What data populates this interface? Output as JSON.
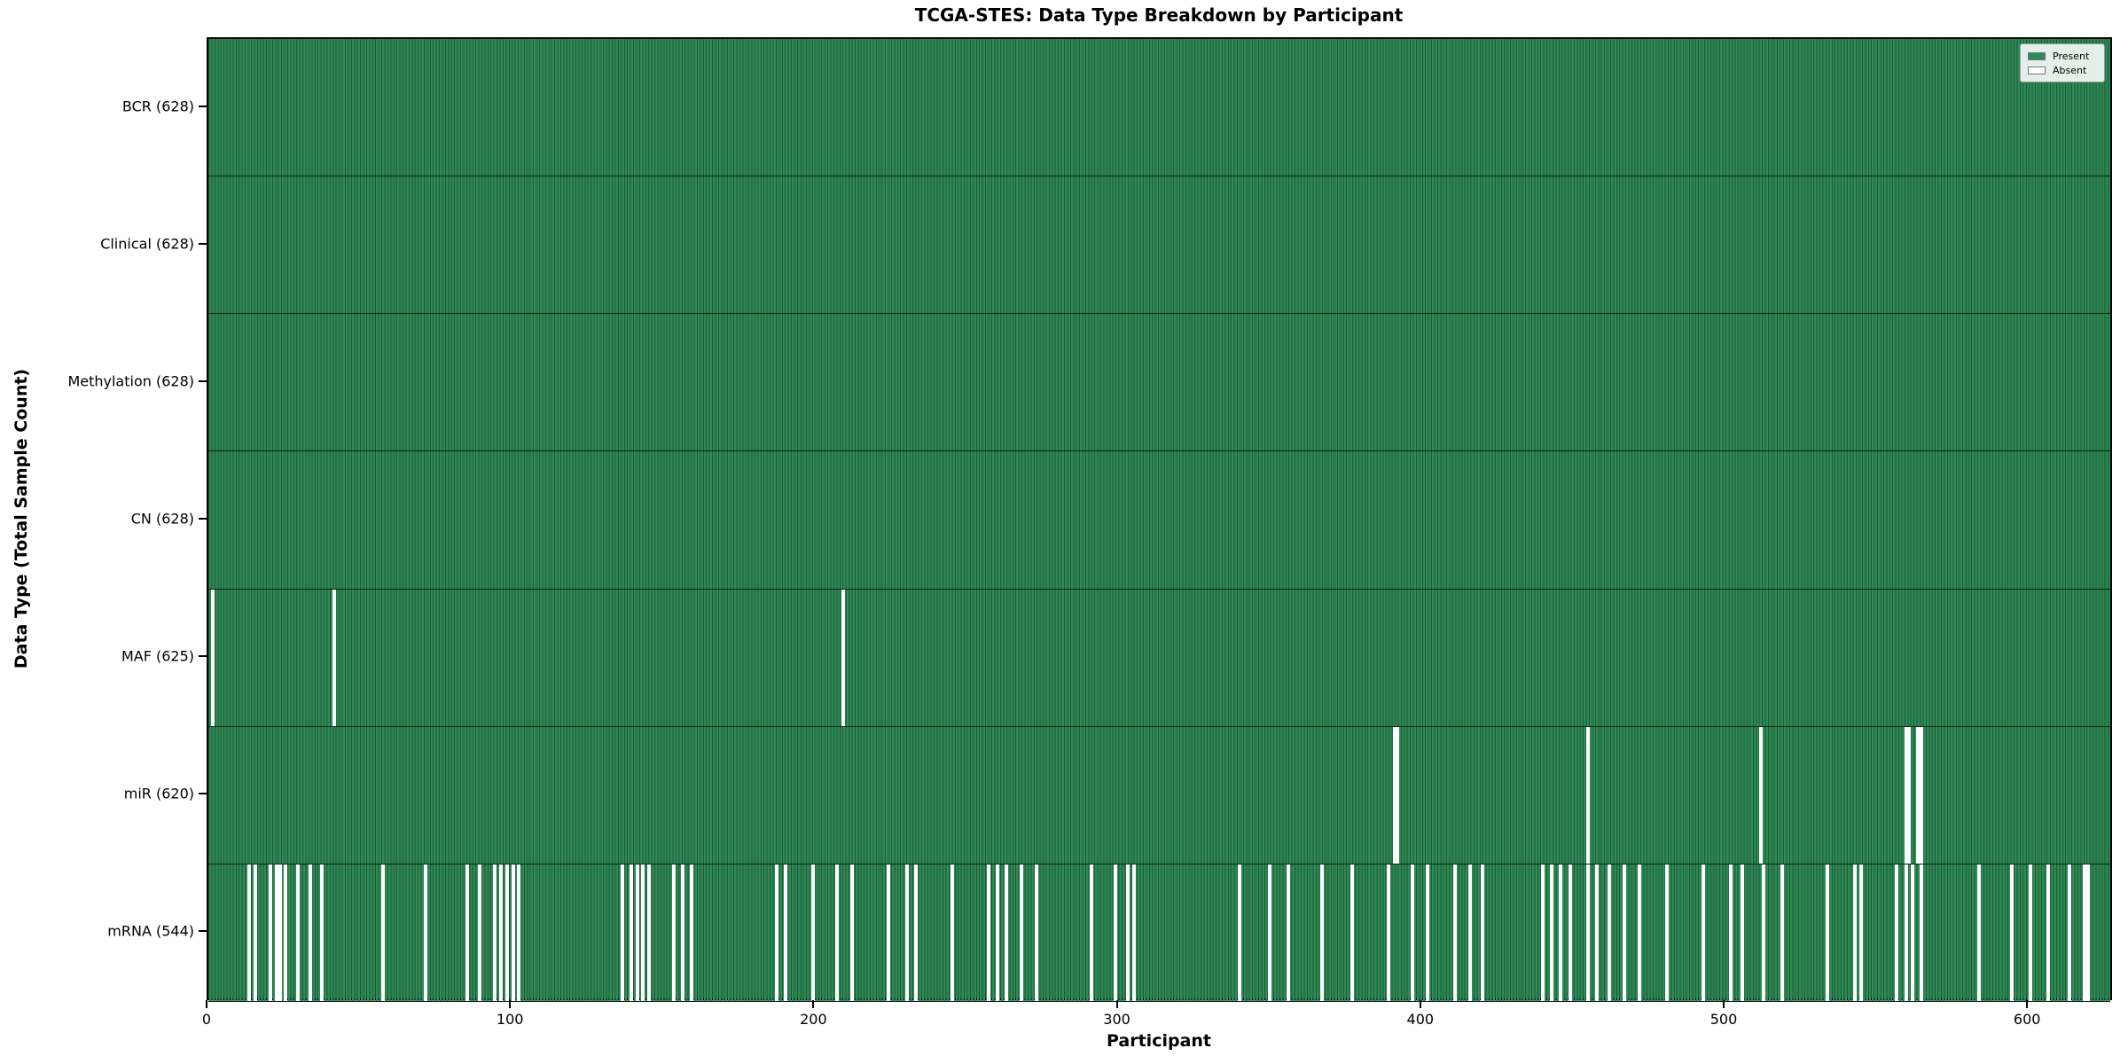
{
  "chart_data": {
    "type": "heatmap",
    "title": "TCGA-STES: Data Type Breakdown by Participant",
    "xlabel": "Participant",
    "ylabel": "Data Type (Total Sample Count)",
    "n_participants": 628,
    "xlim": [
      0,
      628
    ],
    "x_ticks": [
      0,
      100,
      200,
      300,
      400,
      500,
      600
    ],
    "grid": false,
    "legend_position": "upper right",
    "legend_entries": [
      "Present",
      "Absent"
    ],
    "colors": {
      "present": "#2e8b57",
      "absent": "#fdfdfd",
      "cell_edge": "rgba(0,0,0,0.38)",
      "row_separator": "#1a1a1a"
    },
    "rows": [
      {
        "key": "bcr",
        "label": "BCR (628)",
        "present_count": 628,
        "absent_indices": []
      },
      {
        "key": "clinical",
        "label": "Clinical (628)",
        "present_count": 628,
        "absent_indices": []
      },
      {
        "key": "methylation",
        "label": "Methylation (628)",
        "present_count": 628,
        "absent_indices": []
      },
      {
        "key": "cn",
        "label": "CN (628)",
        "present_count": 628,
        "absent_indices": []
      },
      {
        "key": "maf",
        "label": "MAF (625)",
        "present_count": 625,
        "absent_indices": [
          1,
          41,
          209
        ]
      },
      {
        "key": "mir",
        "label": "miR (620)",
        "present_count": 620,
        "absent_indices": [
          391,
          392,
          455,
          512,
          560,
          561,
          564,
          565
        ]
      },
      {
        "key": "mrna",
        "label": "mRNA (544)",
        "present_count": 544,
        "absent_indices": [
          13,
          15,
          20,
          22,
          23,
          25,
          29,
          33,
          37,
          57,
          71,
          85,
          89,
          94,
          96,
          98,
          100,
          102,
          136,
          139,
          141,
          143,
          145,
          153,
          156,
          159,
          187,
          190,
          199,
          207,
          212,
          224,
          230,
          233,
          245,
          257,
          260,
          263,
          268,
          273,
          291,
          299,
          303,
          305,
          340,
          350,
          356,
          367,
          377,
          389,
          397,
          402,
          411,
          416,
          420,
          440,
          443,
          446,
          449,
          455,
          458,
          462,
          467,
          472,
          481,
          493,
          502,
          506,
          513,
          519,
          534,
          543,
          545,
          557,
          560,
          562,
          565,
          584,
          595,
          601,
          607,
          614,
          619,
          620
        ]
      }
    ]
  }
}
